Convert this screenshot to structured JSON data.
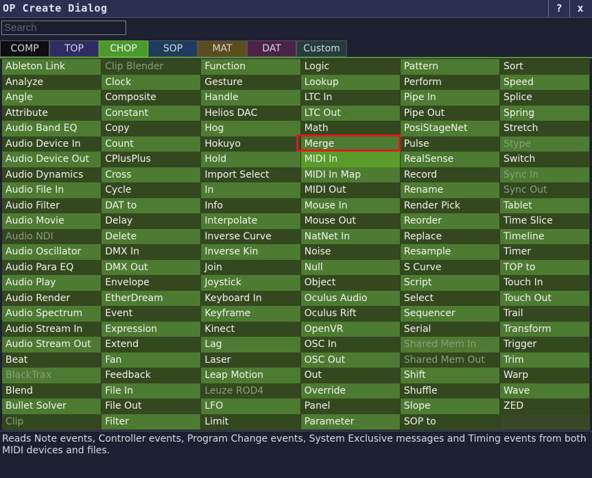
{
  "window": {
    "title": "OP Create Dialog",
    "help_label": "?",
    "close_label": "x"
  },
  "search": {
    "placeholder": "Search",
    "value": ""
  },
  "tabs": [
    {
      "label": "COMP",
      "color": "#0e0e12"
    },
    {
      "label": "TOP",
      "color": "#2d2c63"
    },
    {
      "label": "CHOP",
      "color": "#4a9a2c"
    },
    {
      "label": "SOP",
      "color": "#1f3c5c"
    },
    {
      "label": "MAT",
      "color": "#5b4d1c"
    },
    {
      "label": "DAT",
      "color": "#4b2348"
    },
    {
      "label": "Custom",
      "color": "#243c3c"
    }
  ],
  "active_tab": "CHOP",
  "highlighted_operator": "Merge",
  "selected_operator": "MIDI In",
  "columns": [
    [
      "Ableton Link",
      "Analyze",
      "Angle",
      "Attribute",
      "Audio Band EQ",
      "Audio Device In",
      "Audio Device Out",
      "Audio Dynamics",
      "Audio File In",
      "Audio Filter",
      "Audio Movie",
      "Audio NDI",
      "Audio Oscillator",
      "Audio Para EQ",
      "Audio Play",
      "Audio Render",
      "Audio Spectrum",
      "Audio Stream In",
      "Audio Stream Out",
      "Beat",
      "BlackTrax",
      "Blend",
      "Bullet Solver",
      "Clip"
    ],
    [
      "Clip Blender",
      "Clock",
      "Composite",
      "Constant",
      "Copy",
      "Count",
      "CPlusPlus",
      "Cross",
      "Cycle",
      "DAT to",
      "Delay",
      "Delete",
      "DMX In",
      "DMX Out",
      "Envelope",
      "EtherDream",
      "Event",
      "Expression",
      "Extend",
      "Fan",
      "Feedback",
      "File In",
      "File Out",
      "Filter"
    ],
    [
      "Function",
      "Gesture",
      "Handle",
      "Helios DAC",
      "Hog",
      "Hokuyo",
      "Hold",
      "Import Select",
      "In",
      "Info",
      "Interpolate",
      "Inverse Curve",
      "Inverse Kin",
      "Join",
      "Joystick",
      "Keyboard In",
      "Keyframe",
      "Kinect",
      "Lag",
      "Laser",
      "Leap Motion",
      "Leuze ROD4",
      "LFO",
      "Limit"
    ],
    [
      "Logic",
      "Lookup",
      "LTC In",
      "LTC Out",
      "Math",
      "Merge",
      "MIDI In",
      "MIDI In Map",
      "MIDI Out",
      "Mouse In",
      "Mouse Out",
      "NatNet In",
      "Noise",
      "Null",
      "Object",
      "Oculus Audio",
      "Oculus Rift",
      "OpenVR",
      "OSC In",
      "OSC Out",
      "Out",
      "Override",
      "Panel",
      "Parameter"
    ],
    [
      "Pattern",
      "Perform",
      "Pipe In",
      "Pipe Out",
      "PosiStageNet",
      "Pulse",
      "RealSense",
      "Record",
      "Rename",
      "Render Pick",
      "Reorder",
      "Replace",
      "Resample",
      "S Curve",
      "Script",
      "Select",
      "Sequencer",
      "Serial",
      "Shared Mem In",
      "Shared Mem Out",
      "Shift",
      "Shuffle",
      "Slope",
      "SOP to"
    ],
    [
      "Sort",
      "Speed",
      "Splice",
      "Spring",
      "Stretch",
      "Stype",
      "Switch",
      "Sync In",
      "Sync Out",
      "Tablet",
      "Time Slice",
      "Timeline",
      "Timer",
      "TOP to",
      "Touch In",
      "Touch Out",
      "Trail",
      "Transform",
      "Trigger",
      "Trim",
      "Warp",
      "Wave",
      "ZED"
    ]
  ],
  "disabled_operators": [
    "Clip Blender",
    "Audio NDI",
    "BlackTrax",
    "Clip",
    "Leuze ROD4",
    "Shared Mem In",
    "Shared Mem Out",
    "Stype",
    "Sync In",
    "Sync Out"
  ],
  "colors": {
    "cell_light": "#4e7b32",
    "cell_dark": "#34481f",
    "cell_selected": "#5a9c2a",
    "highlight_box": "#e0191c"
  },
  "status_text": "Reads Note events, Controller events, Program Change events, System Exclusive messages and Timing events from both MIDI devices and files."
}
